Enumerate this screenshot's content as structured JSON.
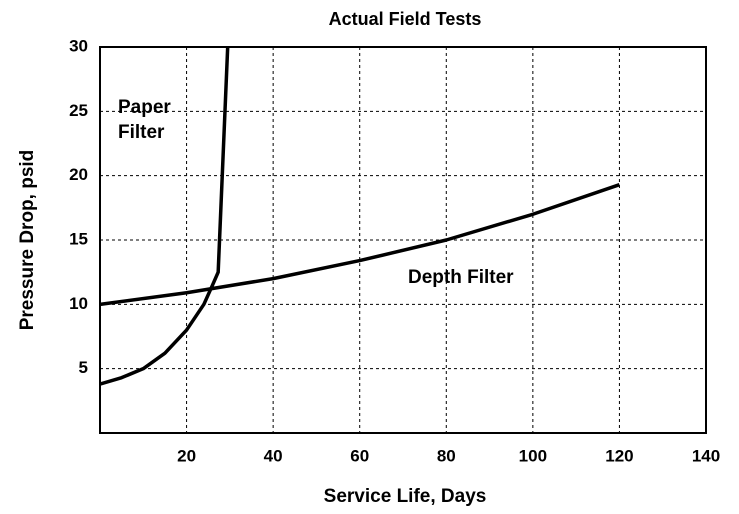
{
  "chart_data": {
    "type": "line",
    "title": "Actual Field Tests",
    "x_label": "Service Life, Days",
    "y_label": "Pressure Drop, psid",
    "xlim": [
      0,
      140
    ],
    "ylim": [
      0,
      30
    ],
    "xticks": [
      20,
      40,
      60,
      80,
      100,
      120,
      140
    ],
    "yticks": [
      5,
      10,
      15,
      20,
      25,
      30
    ],
    "grid": true,
    "series": [
      {
        "name": "Paper Filter",
        "color": "#000000",
        "x": [
          0,
          5,
          10,
          15,
          20,
          24,
          26,
          27.3,
          29.5
        ],
        "values": [
          3.8,
          4.3,
          5,
          6.2,
          8,
          10,
          11.5,
          12.5,
          30
        ]
      },
      {
        "name": "Depth Filter",
        "color": "#000000",
        "x": [
          0,
          20,
          40,
          60,
          80,
          100,
          120
        ],
        "values": [
          10,
          10.9,
          12,
          13.4,
          15,
          17,
          19.3
        ]
      }
    ]
  }
}
